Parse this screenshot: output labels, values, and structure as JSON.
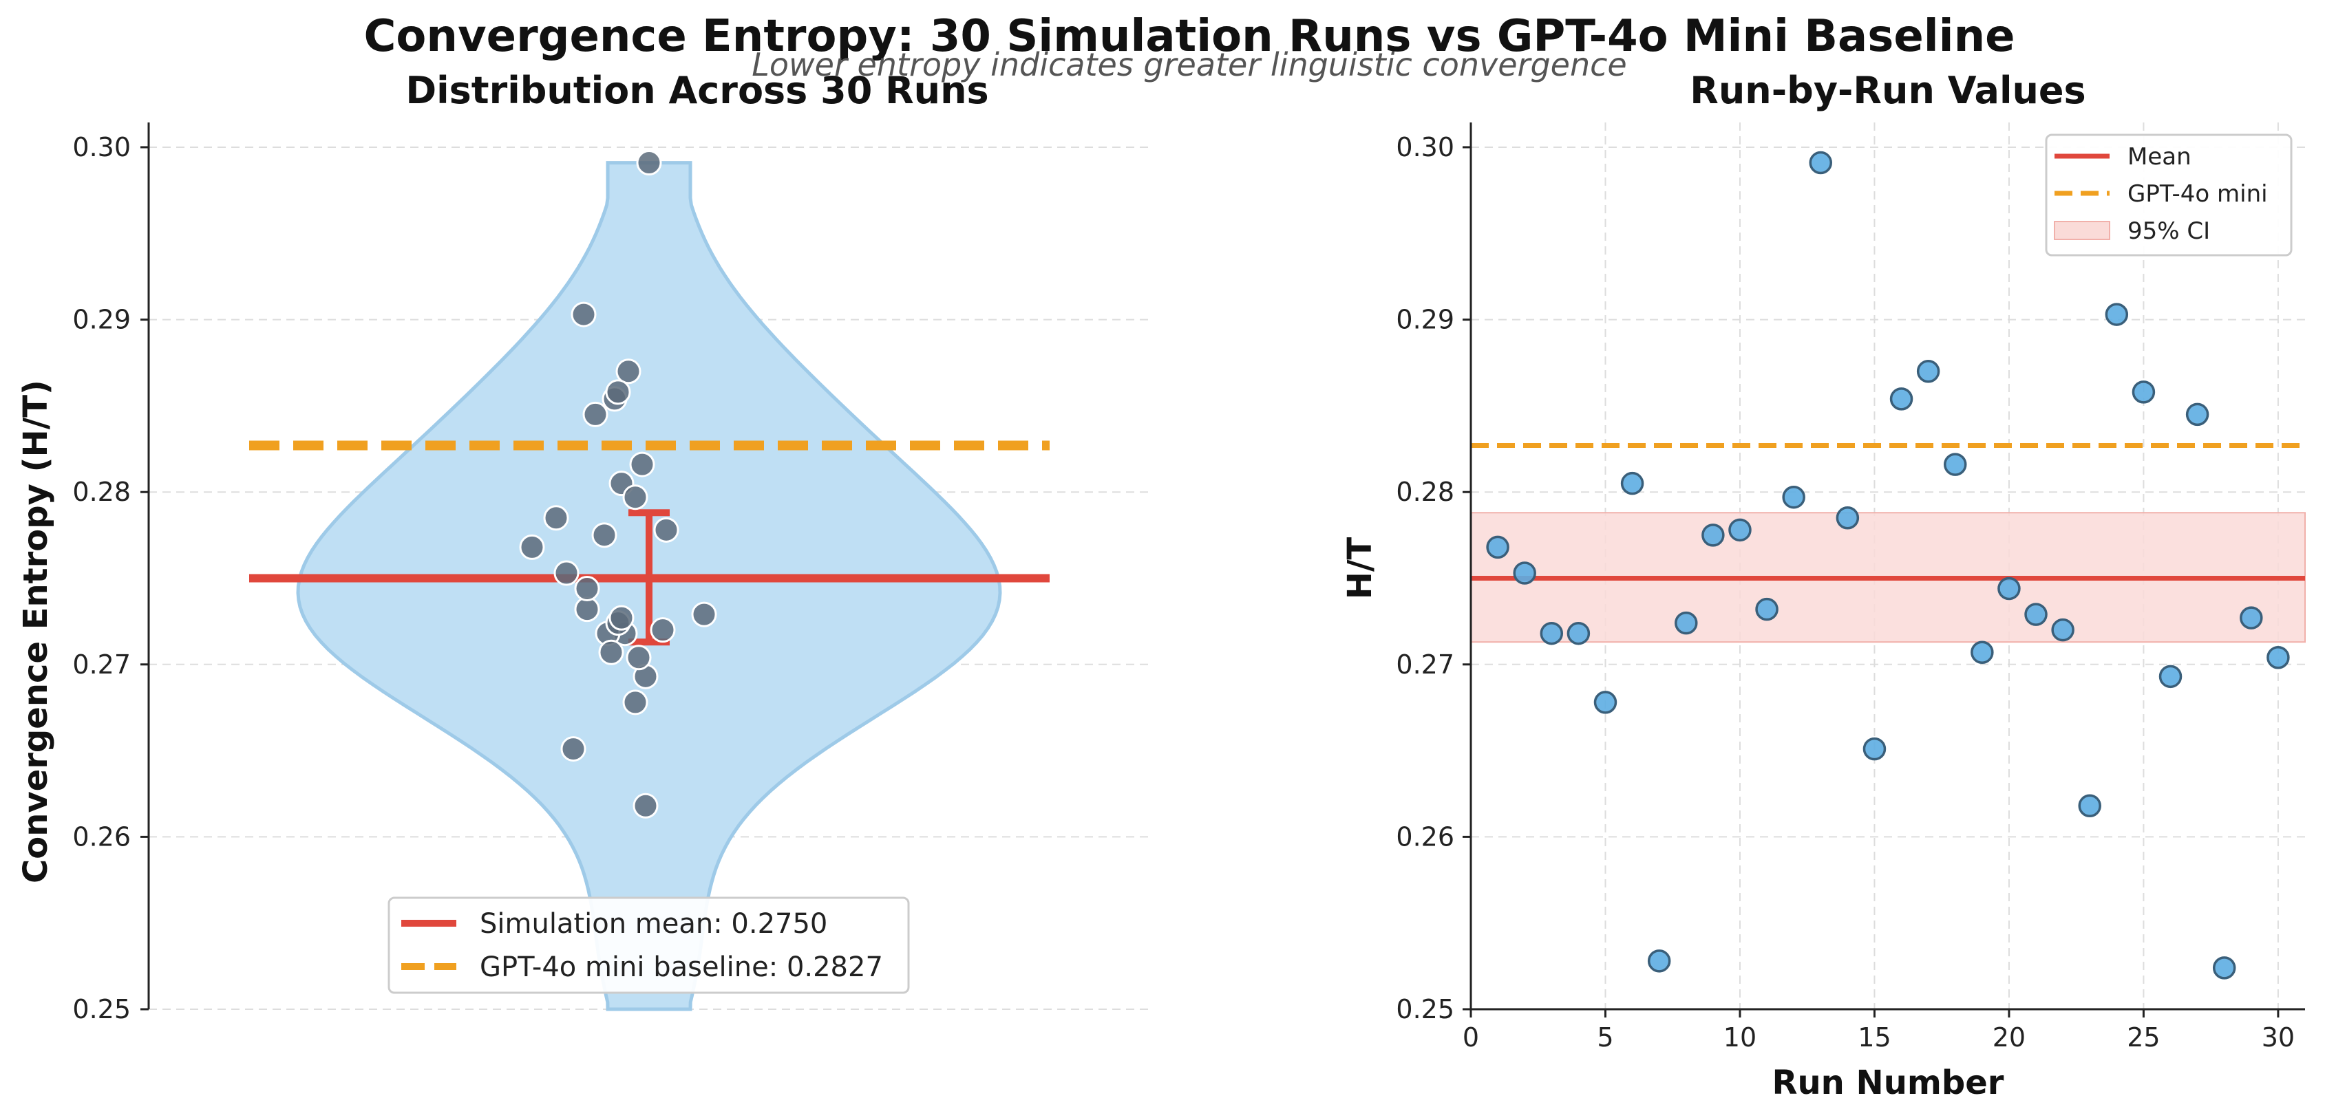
{
  "figure": {
    "title": "Convergence Entropy: 30 Simulation Runs vs GPT-4o Mini Baseline",
    "subtitle": "Lower entropy indicates greater linguistic convergence"
  },
  "colors": {
    "violin_fill": "#bfdff4",
    "violin_edge": "#9ecae8",
    "mean": "#e0473c",
    "baseline": "#f0a020",
    "point_left": "#5c6b7a",
    "point_right": "#5dade2",
    "point_edge_right": "#3a5f7a",
    "ci_fill": "#fadbd8",
    "ci_edge": "#f1b0aa",
    "grid": "#dddddd"
  },
  "chart_data": [
    {
      "type": "violin",
      "title": "Distribution Across 30 Runs",
      "ylabel": "Convergence Entropy (H/T)",
      "xlabel": "",
      "ylim": [
        0.25,
        0.301
      ],
      "yticks": [
        "0.25",
        "0.26",
        "0.27",
        "0.28",
        "0.29",
        "0.30"
      ],
      "mean": 0.275,
      "baseline": 0.2827,
      "ci": [
        0.2713,
        0.2788
      ],
      "legend": {
        "placement": "bottom-center",
        "mean_label": "Simulation mean: 0.2750",
        "baseline_label": "GPT-4o mini baseline: 0.2827"
      }
    },
    {
      "type": "scatter",
      "title": "Run-by-Run Values",
      "xlabel": "Run Number",
      "ylabel": "H/T",
      "xlim": [
        0,
        31
      ],
      "ylim": [
        0.25,
        0.301
      ],
      "xticks": [
        "0",
        "5",
        "10",
        "15",
        "20",
        "25",
        "30"
      ],
      "yticks": [
        "0.25",
        "0.26",
        "0.27",
        "0.28",
        "0.29",
        "0.30"
      ],
      "mean": 0.275,
      "baseline": 0.2827,
      "ci": [
        0.2713,
        0.2788
      ],
      "legend": {
        "placement": "top-right",
        "mean_label": "Mean",
        "baseline_label": "GPT-4o mini",
        "ci_label": "95% CI"
      },
      "x": [
        1,
        2,
        3,
        4,
        5,
        6,
        7,
        8,
        9,
        10,
        11,
        12,
        13,
        14,
        15,
        16,
        17,
        18,
        19,
        20,
        21,
        22,
        23,
        24,
        25,
        26,
        27,
        28,
        29,
        30
      ],
      "y": [
        0.2768,
        0.2753,
        0.2718,
        0.2718,
        0.2678,
        0.2805,
        0.2528,
        0.2724,
        0.2775,
        0.2778,
        0.2732,
        0.2797,
        0.2991,
        0.2785,
        0.2651,
        0.2854,
        0.287,
        0.2816,
        0.2707,
        0.2744,
        0.2729,
        0.272,
        0.2618,
        0.2903,
        0.2858,
        0.2693,
        0.2845,
        0.2524,
        0.2727,
        0.2704
      ]
    }
  ]
}
